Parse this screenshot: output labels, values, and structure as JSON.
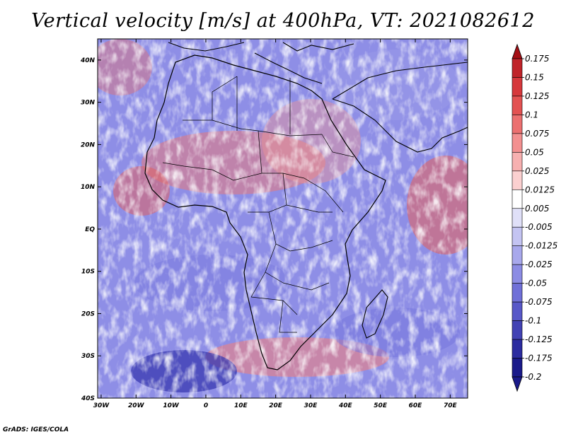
{
  "title": "Vertical velocity [m/s] at 400hPa, VT: 2021082612",
  "credit": "GrADS: IGES/COLA",
  "map": {
    "lat_labels": [
      "40N",
      "30N",
      "20N",
      "10N",
      "EQ",
      "10S",
      "20S",
      "30S",
      "40S"
    ],
    "lat_values": [
      40,
      30,
      20,
      10,
      0,
      -10,
      -20,
      -30,
      -40
    ],
    "lon_labels": [
      "30W",
      "20W",
      "10W",
      "0",
      "10E",
      "20E",
      "30E",
      "40E",
      "50E",
      "60E",
      "70E"
    ],
    "lon_values": [
      -30,
      -20,
      -10,
      0,
      10,
      20,
      30,
      40,
      50,
      60,
      70
    ],
    "extent": {
      "lon_min": -31,
      "lon_max": 75,
      "lat_min": -40,
      "lat_max": 45
    }
  },
  "colorbar": {
    "labels": [
      "0.175",
      "0.15",
      "0.125",
      "0.1",
      "0.075",
      "0.05",
      "0.025",
      "0.0125",
      "0.005",
      "-0.005",
      "-0.0125",
      "-0.025",
      "-0.05",
      "-0.075",
      "-0.1",
      "-0.125",
      "-0.175",
      "-0.2"
    ],
    "colors": [
      "#a50f15",
      "#c0242a",
      "#d6383c",
      "#e35252",
      "#ec7070",
      "#f39090",
      "#f7b0b0",
      "#fbd0d0",
      "#ffffff",
      "#e0e0f8",
      "#c4c4f2",
      "#a8a8ec",
      "#8c8ce4",
      "#7070d8",
      "#5858c8",
      "#4242b4",
      "#2c2ca0",
      "#1a1a8a"
    ]
  },
  "colors": {
    "upward_red": "#e05050",
    "downward_blue": "#6a6ad8",
    "coast": "#000000"
  }
}
